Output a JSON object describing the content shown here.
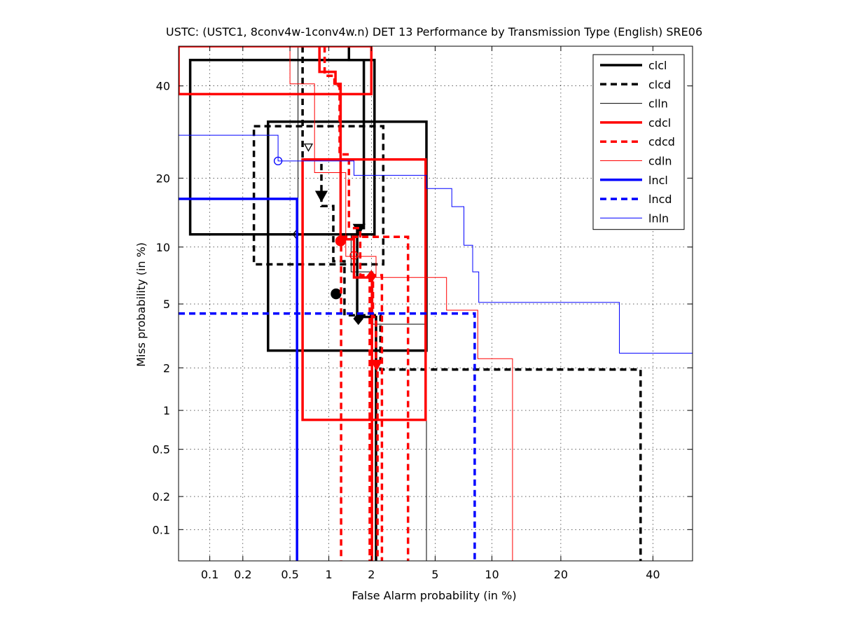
{
  "chart_data": {
    "type": "line",
    "title": "USTC: (USTC1, 8conv4w-1conv4w.n) DET 13 Performance by Transmission Type (English) SRE06",
    "xlabel": "False Alarm probability (in %)",
    "ylabel": "Miss probability (in %)",
    "x_scale": "probit",
    "y_scale": "probit",
    "xlim": [
      0.05,
      50
    ],
    "ylim": [
      0.05,
      50
    ],
    "x_ticks": [
      {
        "value": 0.1,
        "label": "0.1"
      },
      {
        "value": 0.2,
        "label": "0.2"
      },
      {
        "value": 0.5,
        "label": "0.5"
      },
      {
        "value": 1,
        "label": "1"
      },
      {
        "value": 2,
        "label": "2"
      },
      {
        "value": 5,
        "label": "5"
      },
      {
        "value": 10,
        "label": "10"
      },
      {
        "value": 20,
        "label": "20"
      },
      {
        "value": 40,
        "label": "40"
      }
    ],
    "y_ticks": [
      {
        "value": 0.1,
        "label": "0.1"
      },
      {
        "value": 0.2,
        "label": "0.2"
      },
      {
        "value": 0.5,
        "label": "0.5"
      },
      {
        "value": 1,
        "label": "1"
      },
      {
        "value": 2,
        "label": "2"
      },
      {
        "value": 5,
        "label": "5"
      },
      {
        "value": 10,
        "label": "10"
      },
      {
        "value": 20,
        "label": "20"
      },
      {
        "value": 40,
        "label": "40"
      }
    ],
    "grid": true,
    "legend_position": "top-right",
    "series": [
      {
        "name": "clcl",
        "color": "#000000",
        "width": 3.5,
        "dash": "",
        "curve": [
          [
            1.4,
            50
          ],
          [
            1.4,
            46.5
          ],
          [
            1.78,
            46.5
          ],
          [
            1.78,
            12.3
          ],
          [
            1.6,
            12.3
          ],
          [
            1.6,
            4.2
          ],
          [
            2.15,
            4.2
          ],
          [
            2.15,
            2.1
          ],
          [
            2.15,
            0.05
          ]
        ],
        "boxes": [
          [
            0.065,
            11.5,
            2.1,
            46.5
          ],
          [
            0.33,
            2.6,
            4.45,
            31.5
          ]
        ],
        "markers": [
          {
            "fa": 1.65,
            "miss": 12.2,
            "shape": "triangle-down",
            "filled": true
          }
        ]
      },
      {
        "name": "clcd",
        "color": "#000000",
        "width": 3.5,
        "dash": "9,6",
        "curve": [
          [
            0.63,
            50
          ],
          [
            0.63,
            23.5
          ],
          [
            0.88,
            23.5
          ],
          [
            0.88,
            15.4
          ],
          [
            1.08,
            15.4
          ],
          [
            1.08,
            8.5
          ],
          [
            1.3,
            8.5
          ],
          [
            1.3,
            4.3
          ],
          [
            2.3,
            4.3
          ],
          [
            2.3,
            1.95
          ],
          [
            37,
            1.95
          ],
          [
            37,
            0.05
          ]
        ],
        "boxes": [
          [
            0.25,
            8.2,
            2.4,
            30.5
          ]
        ],
        "markers": [
          {
            "fa": 0.88,
            "miss": 17,
            "shape": "triangle-down",
            "filled": true
          },
          {
            "fa": 1.13,
            "miss": 5.7,
            "shape": "circle",
            "filled": true
          },
          {
            "fa": 1.63,
            "miss": 4.1,
            "shape": "diamond",
            "filled": true
          }
        ]
      },
      {
        "name": "clln",
        "color": "#000000",
        "width": 1,
        "dash": "",
        "curve": [
          [
            0.58,
            50
          ],
          [
            0.58,
            11.5
          ],
          [
            1.45,
            11.5
          ],
          [
            1.45,
            7.5
          ],
          [
            2.05,
            7.5
          ],
          [
            2.05,
            3.8
          ],
          [
            4.45,
            3.8
          ],
          [
            4.45,
            0.05
          ]
        ],
        "boxes": [],
        "markers": [
          {
            "fa": 0.7,
            "miss": 26,
            "shape": "triangle-down",
            "filled": false
          },
          {
            "fa": 0.56,
            "miss": 11.5,
            "shape": "diamond",
            "filled": false
          }
        ]
      },
      {
        "name": "cdcl",
        "color": "#ff0000",
        "width": 3.5,
        "dash": "",
        "curve": [
          [
            0.85,
            50
          ],
          [
            0.85,
            43.5
          ],
          [
            1.12,
            43.5
          ],
          [
            1.12,
            40.5
          ],
          [
            1.22,
            40.5
          ],
          [
            1.22,
            10.9
          ],
          [
            1.52,
            10.9
          ],
          [
            1.52,
            7
          ],
          [
            2.02,
            7
          ],
          [
            2.02,
            0.05
          ]
        ],
        "boxes": [
          [
            0.05,
            38,
            2.0,
            50
          ],
          [
            0.63,
            0.85,
            4.4,
            23.5
          ]
        ],
        "markers": [
          {
            "fa": 1.22,
            "miss": 10.7,
            "shape": "circle",
            "filled": true
          },
          {
            "fa": 2.0,
            "miss": 7.1,
            "shape": "diamond",
            "filled": true
          }
        ]
      },
      {
        "name": "cdcd",
        "color": "#ff0000",
        "width": 3.5,
        "dash": "9,6",
        "curve": [
          [
            0.93,
            50
          ],
          [
            0.93,
            42.5
          ],
          [
            1.1,
            42.5
          ],
          [
            1.1,
            40
          ],
          [
            1.2,
            40
          ],
          [
            1.2,
            24.5
          ],
          [
            1.4,
            24.5
          ],
          [
            1.4,
            12.3
          ],
          [
            1.68,
            12.3
          ],
          [
            1.68,
            7.2
          ],
          [
            2.05,
            7.2
          ],
          [
            2.05,
            4.2
          ],
          [
            2.15,
            4.2
          ],
          [
            2.15,
            2.1
          ],
          [
            2.2,
            2.1
          ],
          [
            2.2,
            0.05
          ]
        ],
        "boxes": [
          [
            1.23,
            0.035,
            3.45,
            11.2
          ],
          [
            1.95,
            0.035,
            2.35,
            7.2
          ]
        ],
        "markers": [
          {
            "fa": 2.17,
            "miss": 2.1,
            "shape": "triangle-down",
            "filled": true
          }
        ]
      },
      {
        "name": "cdln",
        "color": "#ff0000",
        "width": 1,
        "dash": "",
        "curve": [
          [
            0.5,
            50
          ],
          [
            0.5,
            40.5
          ],
          [
            0.78,
            40.5
          ],
          [
            0.78,
            21
          ],
          [
            1.33,
            21
          ],
          [
            1.33,
            9
          ],
          [
            2.15,
            9
          ],
          [
            2.15,
            7
          ],
          [
            5.8,
            7
          ],
          [
            5.8,
            4.6
          ],
          [
            8.5,
            4.6
          ],
          [
            8.5,
            2.3
          ],
          [
            12.5,
            2.3
          ],
          [
            12.5,
            0.05
          ]
        ],
        "boxes": [],
        "markers": [
          {
            "fa": 1.52,
            "miss": 9.1,
            "shape": "circle",
            "filled": false
          }
        ]
      },
      {
        "name": "lncl",
        "color": "#0000ff",
        "width": 3.5,
        "dash": "",
        "curve": [
          [
            0.05,
            16.5
          ],
          [
            0.57,
            16.5
          ],
          [
            0.57,
            0.05
          ]
        ],
        "boxes": [],
        "markers": []
      },
      {
        "name": "lncd",
        "color": "#0000ff",
        "width": 3.5,
        "dash": "9,6",
        "curve": [
          [
            0.05,
            4.4
          ],
          [
            8.2,
            4.4
          ],
          [
            8.2,
            0.05
          ]
        ],
        "boxes": [],
        "markers": []
      },
      {
        "name": "lnln",
        "color": "#0000ff",
        "width": 1,
        "dash": "",
        "curve": [
          [
            0.05,
            28.5
          ],
          [
            0.4,
            28.5
          ],
          [
            0.4,
            23.2
          ],
          [
            1.52,
            23.2
          ],
          [
            1.52,
            20.5
          ],
          [
            4.45,
            20.5
          ],
          [
            4.45,
            18.2
          ],
          [
            6.2,
            18.2
          ],
          [
            6.2,
            15.3
          ],
          [
            7.2,
            15.3
          ],
          [
            7.2,
            10.2
          ],
          [
            8.0,
            10.2
          ],
          [
            8.0,
            7.5
          ],
          [
            8.6,
            7.5
          ],
          [
            8.6,
            5.1
          ],
          [
            32,
            5.1
          ],
          [
            32,
            2.5
          ],
          [
            50,
            2.5
          ]
        ],
        "boxes": [],
        "markers": [
          {
            "fa": 0.4,
            "miss": 23.2,
            "shape": "circle",
            "filled": false
          }
        ]
      }
    ]
  }
}
